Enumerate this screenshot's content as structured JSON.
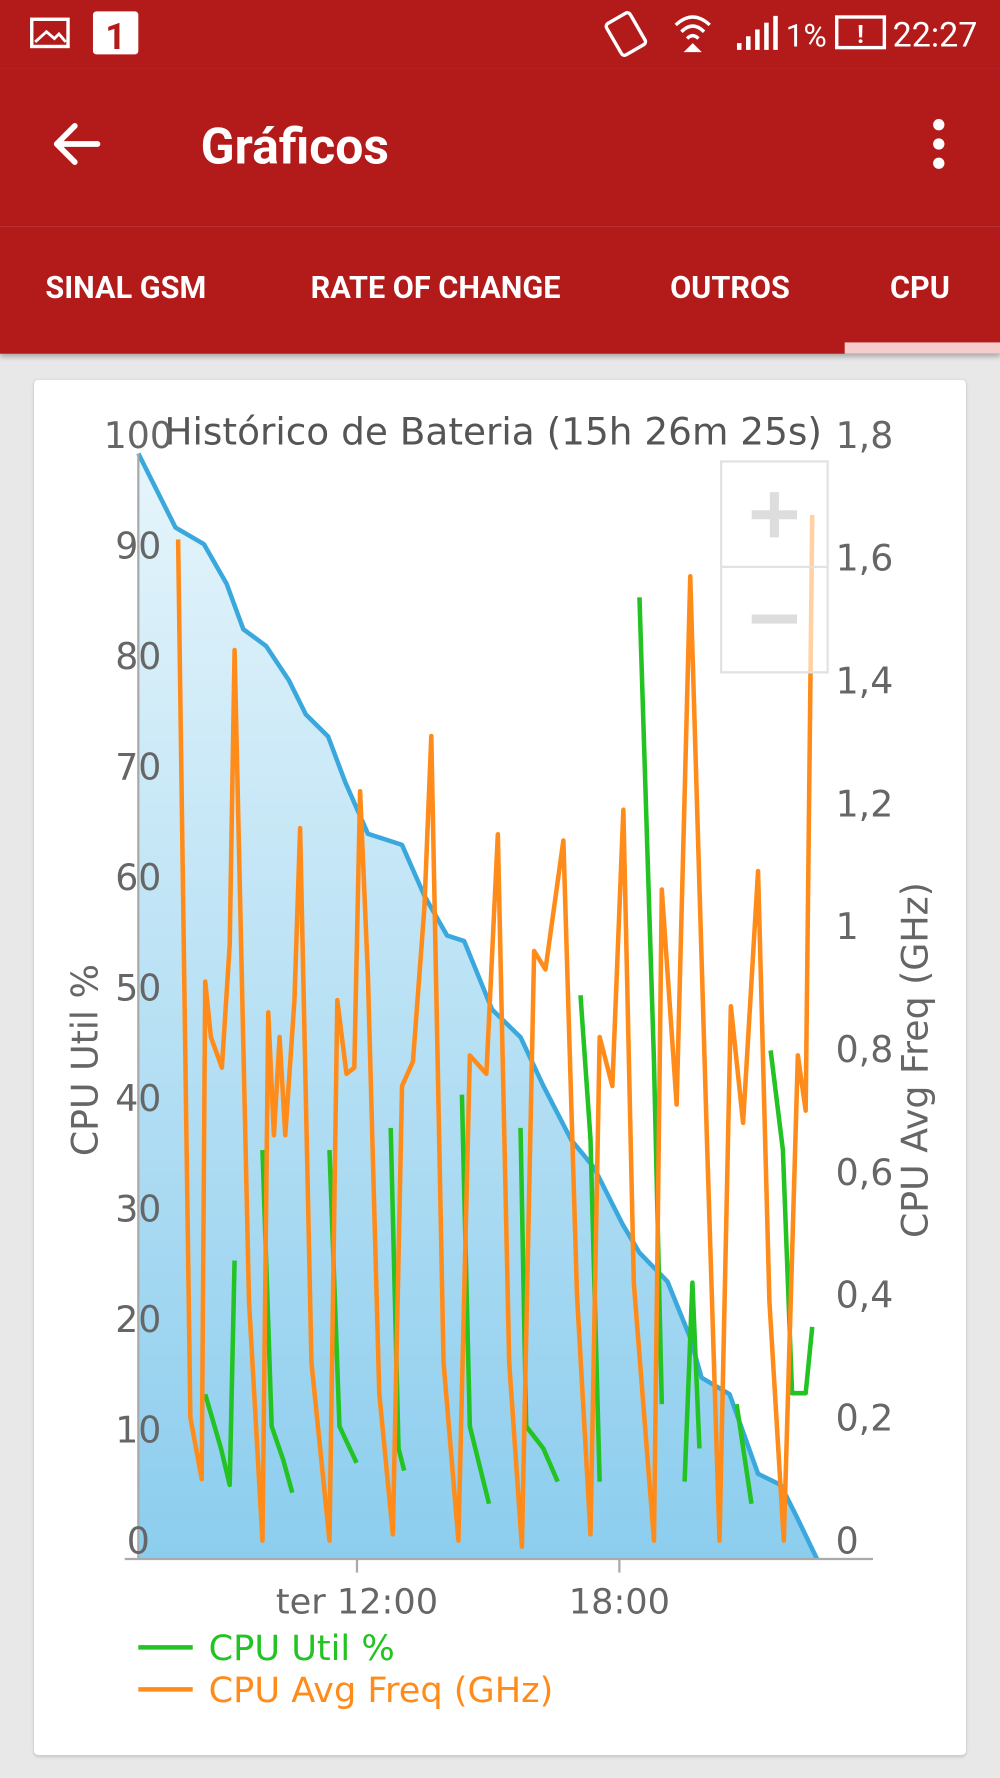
{
  "status_bar": {
    "notification_count": "1",
    "battery": "1%",
    "time": "22:27"
  },
  "toolbar": {
    "title": "Gráficos"
  },
  "tabs": [
    "SINAL GSM",
    "RATE OF CHANGE",
    "OUTROS",
    "CPU"
  ],
  "chart_data": {
    "type": "line",
    "title": "Histórico de Bateria (15h 26m 25s)",
    "y_label": "CPU Util %",
    "y2_label": "CPU Avg Freq (GHz)",
    "xlim": [
      7,
      23.8
    ],
    "xticks": [
      {
        "value": 12,
        "label": "ter 12:00"
      },
      {
        "value": 18,
        "label": "18:00"
      }
    ],
    "ylim": [
      0,
      100
    ],
    "yticks": [
      0,
      10,
      20,
      30,
      40,
      50,
      60,
      70,
      80,
      90,
      100
    ],
    "y2lim": [
      0,
      1.8
    ],
    "y2ticks": [
      0,
      {
        "value": 0.2,
        "label": "0,2"
      },
      {
        "value": 0.4,
        "label": "0,4"
      },
      {
        "value": 0.6,
        "label": "0,6"
      },
      {
        "value": 0.8,
        "label": "0,8"
      },
      1,
      {
        "value": 1.2,
        "label": "1,2"
      },
      {
        "value": 1.4,
        "label": "1,4"
      },
      {
        "value": 1.6,
        "label": "1,6"
      },
      {
        "value": 1.8,
        "label": "1,8"
      }
    ],
    "grid": false,
    "legend": "bottom-left",
    "series": [
      {
        "color": "#3aa8dc",
        "area": true,
        "x": [
          7.0,
          7.85,
          8.5,
          9.02,
          9.4,
          9.92,
          10.44,
          10.83,
          11.34,
          11.73,
          12.25,
          13.03,
          13.54,
          14.06,
          14.45,
          15.09,
          15.74,
          16.26,
          16.9,
          17.42,
          18.07,
          18.46,
          19.1,
          19.62,
          19.88,
          20.52,
          21.17,
          21.69,
          22.08,
          22.52
        ],
        "values": [
          100,
          93.3,
          91.8,
          88.2,
          84.1,
          82.6,
          79.5,
          76.4,
          74.4,
          70.3,
          65.6,
          64.6,
          60,
          56.4,
          55.9,
          49.7,
          47.2,
          42.8,
          37.9,
          35.4,
          30.3,
          27.7,
          25.1,
          20,
          16.4,
          14.9,
          7.7,
          6.7,
          3.6,
          0
        ]
      },
      {
        "name": "CPU Util %",
        "color": "#22c322",
        "x": [
          8.53,
          8.89,
          9.09,
          9.2,
          null,
          9.84,
          10.05,
          10.31,
          10.52,
          null,
          11.37,
          11.6,
          11.99,
          null,
          12.77,
          12.95,
          13.08,
          null,
          14.4,
          14.58,
          15.02,
          null,
          15.74,
          15.87,
          16.26,
          16.59,
          null,
          17.11,
          17.34,
          17.55,
          null,
          18.46,
          18.79,
          18.97,
          null,
          19.49,
          19.67,
          19.83,
          null,
          20.68,
          21.02,
          null,
          21.46,
          21.74,
          21.95,
          22.26,
          22.41
        ],
        "values": [
          14.9,
          10,
          6.7,
          27,
          null,
          37,
          12,
          9,
          6,
          null,
          37,
          12,
          8.7,
          null,
          39,
          10,
          8,
          null,
          42,
          12,
          5,
          null,
          39,
          12,
          10,
          7,
          null,
          51,
          38,
          7,
          null,
          87,
          45,
          14,
          null,
          7,
          25,
          10,
          null,
          14,
          5,
          null,
          46,
          37,
          15,
          15,
          21
        ]
      },
      {
        "name": "CPU Avg Freq (GHz)",
        "color": "#ff8c1a",
        "axis": "y2",
        "x": [
          7.91,
          8.19,
          8.45,
          8.53,
          8.66,
          8.91,
          9.09,
          9.2,
          9.53,
          9.84,
          9.97,
          10.1,
          10.23,
          10.36,
          10.57,
          10.7,
          10.96,
          11.37,
          11.55,
          11.76,
          11.94,
          12.07,
          12.25,
          12.51,
          12.82,
          13.03,
          13.28,
          13.54,
          13.7,
          13.98,
          14.32,
          14.58,
          14.96,
          15.22,
          15.48,
          15.77,
          16.05,
          16.31,
          16.72,
          17.03,
          17.34,
          17.55,
          17.84,
          18.09,
          18.33,
          18.79,
          18.97,
          19.31,
          19.62,
          20.0,
          20.29,
          20.55,
          20.83,
          21.17,
          21.43,
          21.76,
          22.08,
          22.26,
          22.41
        ],
        "values": [
          1.66,
          0.23,
          0.13,
          0.94,
          0.85,
          0.8,
          1.0,
          1.48,
          0.42,
          0.03,
          0.89,
          0.69,
          0.85,
          0.69,
          0.91,
          1.19,
          0.32,
          0.03,
          0.91,
          0.79,
          0.8,
          1.25,
          0.95,
          0.27,
          0.04,
          0.77,
          0.81,
          1.06,
          1.34,
          0.32,
          0.03,
          0.82,
          0.79,
          1.18,
          0.32,
          0.02,
          0.99,
          0.96,
          1.17,
          0.43,
          0.04,
          0.85,
          0.77,
          1.22,
          0.45,
          0.03,
          1.09,
          0.74,
          1.6,
          0.69,
          0.03,
          0.9,
          0.71,
          1.12,
          0.42,
          0.03,
          0.82,
          0.73,
          1.7
        ]
      }
    ]
  }
}
